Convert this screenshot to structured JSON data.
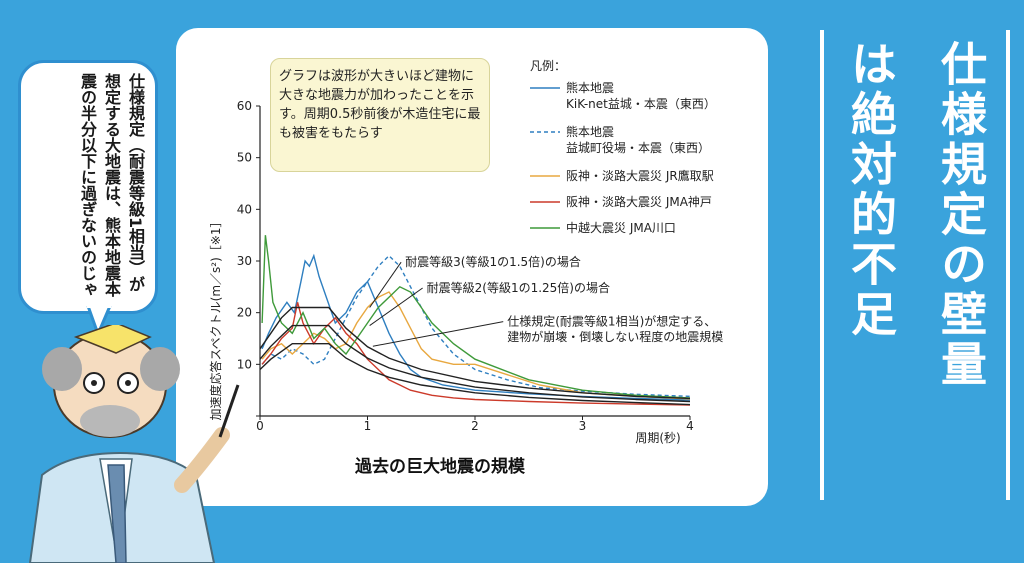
{
  "title": "仕様規定の壁量は絶対的不足",
  "title_col1": "仕様規定の壁量",
  "title_col2": "は絶対的不足",
  "speech": "仕様規定（耐震等級1相当）が想定する大地震は、熊本地震本震の半分以下に過ぎないのじゃ",
  "note": "グラフは波形が大きいほど建物に大きな地震力が加わったことを示す。周期0.5秒前後が木造住宅に最も被害をもたらす",
  "chart_data": {
    "type": "line",
    "title": "過去の巨大地震の規模",
    "xlabel": "周期(秒)",
    "ylabel": "加速度応答スペクトル(m／s²)［※1］",
    "xlim": [
      0,
      4
    ],
    "ylim": [
      0,
      60
    ],
    "xticks": [
      "0",
      "1",
      "2",
      "3",
      "4"
    ],
    "yticks": [
      "0",
      "10",
      "20",
      "30",
      "40",
      "50",
      "60"
    ],
    "legend_title": "凡例：",
    "legend_position": "top-right",
    "colors": {
      "blue": "#2f7fc0",
      "orange": "#e8a840",
      "red": "#cc3a2a",
      "green": "#3f9a3a",
      "black": "#222222"
    },
    "series": [
      {
        "name": "熊本地震\nKiK-net益城・本震（東西）",
        "line1": "熊本地震",
        "line2": "KiK-net益城・本震（東西）",
        "color": "#2f7fc0",
        "dash": false,
        "x": [
          0.02,
          0.08,
          0.15,
          0.25,
          0.32,
          0.38,
          0.42,
          0.46,
          0.5,
          0.55,
          0.6,
          0.7,
          0.8,
          0.9,
          1.0,
          1.1,
          1.2,
          1.3,
          1.4,
          1.5,
          1.7,
          2.0,
          2.5,
          3.0,
          3.5,
          4.0
        ],
        "y": [
          13,
          16,
          19,
          22,
          20,
          26,
          30,
          29,
          31,
          27,
          24,
          18,
          20,
          24,
          26,
          21,
          16,
          12,
          9,
          7.5,
          6,
          5,
          4.3,
          3.8,
          3.4,
          3.1
        ]
      },
      {
        "name": "熊本地震\n益城町役場・本震（東西）",
        "line1": "熊本地震",
        "line2": "益城町役場・本震（東西）",
        "color": "#2f7fc0",
        "dash": true,
        "x": [
          0.02,
          0.1,
          0.2,
          0.3,
          0.4,
          0.5,
          0.6,
          0.7,
          0.8,
          0.9,
          1.0,
          1.1,
          1.2,
          1.3,
          1.4,
          1.5,
          1.6,
          1.8,
          2.0,
          2.3,
          2.6,
          3.0,
          3.5,
          4.0
        ],
        "y": [
          10,
          12,
          11,
          13,
          12,
          10,
          11,
          15,
          19,
          23,
          26,
          29,
          31,
          29,
          25,
          21,
          17,
          12,
          9,
          7,
          5.5,
          4.8,
          4.2,
          3.8
        ]
      },
      {
        "name": "阪神・淡路大震災 JR鷹取駅",
        "line1": "阪神・淡路大震災 JR鷹取駅",
        "line2": "",
        "color": "#e8a840",
        "dash": false,
        "x": [
          0.02,
          0.1,
          0.2,
          0.3,
          0.4,
          0.5,
          0.6,
          0.7,
          0.8,
          0.9,
          1.0,
          1.1,
          1.2,
          1.3,
          1.4,
          1.5,
          1.6,
          1.8,
          2.0,
          2.3,
          2.6,
          3.0,
          3.5,
          4.0
        ],
        "y": [
          11,
          13,
          14,
          12,
          14,
          16,
          15,
          13,
          14,
          18,
          21,
          23,
          24,
          21,
          17,
          13,
          11,
          10,
          10,
          8,
          6,
          4.5,
          3.8,
          3.3
        ]
      },
      {
        "name": "阪神・淡路大震災 JMA神戸",
        "line1": "阪神・淡路大震災 JMA神戸",
        "line2": "",
        "color": "#cc3a2a",
        "dash": false,
        "x": [
          0.02,
          0.1,
          0.2,
          0.3,
          0.35,
          0.4,
          0.5,
          0.6,
          0.7,
          0.8,
          0.9,
          1.0,
          1.1,
          1.2,
          1.3,
          1.4,
          1.6,
          1.8,
          2.0,
          2.5,
          3.0,
          3.5,
          4.0
        ],
        "y": [
          10,
          12,
          15,
          17,
          22,
          18,
          14,
          17,
          19,
          16,
          14,
          11,
          9,
          7,
          6,
          5,
          4,
          3.5,
          3.2,
          2.8,
          2.5,
          2.3,
          2.1
        ]
      },
      {
        "name": "中越大震災 JMA川口",
        "line1": "中越大震災 JMA川口",
        "line2": "",
        "color": "#3f9a3a",
        "dash": false,
        "x": [
          0.02,
          0.05,
          0.08,
          0.12,
          0.2,
          0.3,
          0.4,
          0.5,
          0.6,
          0.7,
          0.8,
          0.9,
          1.0,
          1.1,
          1.2,
          1.3,
          1.4,
          1.5,
          1.6,
          1.8,
          2.0,
          2.5,
          3.0,
          3.5,
          4.0
        ],
        "y": [
          18,
          35,
          30,
          22,
          18,
          16,
          20,
          15,
          17,
          14,
          12,
          15,
          18,
          21,
          23,
          25,
          24,
          21,
          18,
          14,
          11,
          7,
          5,
          4,
          3.5
        ]
      },
      {
        "name": "耐震等級3(等級1の1.5倍)の場合",
        "line1": "",
        "line2": "",
        "color": "#222222",
        "dash": false,
        "unlabeled_legend": true,
        "x": [
          0.0,
          0.1,
          0.2,
          0.3,
          0.4,
          0.5,
          0.6,
          0.64,
          0.8,
          1.0,
          1.2,
          1.5,
          2.0,
          2.5,
          3.0,
          3.5,
          4.0
        ],
        "y": [
          13,
          16,
          19,
          21,
          21,
          21,
          21,
          21,
          17,
          13.4,
          11.2,
          9,
          6.7,
          5.4,
          4.5,
          3.8,
          3.4
        ]
      },
      {
        "name": "耐震等級2(等級1の1.25倍)の場合",
        "line1": "",
        "line2": "",
        "color": "#222222",
        "dash": false,
        "unlabeled_legend": true,
        "x": [
          0.0,
          0.1,
          0.2,
          0.3,
          0.4,
          0.5,
          0.6,
          0.64,
          0.8,
          1.0,
          1.2,
          1.5,
          2.0,
          2.5,
          3.0,
          3.5,
          4.0
        ],
        "y": [
          11,
          13.5,
          15.5,
          17.5,
          17.5,
          17.5,
          17.5,
          17.5,
          14,
          11.2,
          9.3,
          7.5,
          5.6,
          4.5,
          3.7,
          3.2,
          2.8
        ]
      },
      {
        "name": "仕様規定(耐震等級1相当)が想定する、建物が崩壊・倒壊しない程度の地震規模",
        "line1": "",
        "line2": "",
        "color": "#222222",
        "dash": false,
        "unlabeled_legend": true,
        "x": [
          0.0,
          0.1,
          0.2,
          0.3,
          0.4,
          0.5,
          0.6,
          0.64,
          0.8,
          1.0,
          1.2,
          1.5,
          2.0,
          2.5,
          3.0,
          3.5,
          4.0
        ],
        "y": [
          9,
          11,
          12.5,
          14,
          14,
          14,
          14,
          14,
          11.2,
          9,
          7.5,
          6,
          4.5,
          3.6,
          3,
          2.6,
          2.2
        ]
      }
    ],
    "annotations": [
      {
        "text": "耐震等級3(等級1の1.5倍)の場合",
        "x": 1.35,
        "y": 29
      },
      {
        "text": "耐震等級2(等級1の1.25倍)の場合",
        "x": 1.55,
        "y": 24
      },
      {
        "text": "仕様規定(耐震等級1相当)が想定する、",
        "x": 2.3,
        "y": 17.5
      },
      {
        "text": "建物が崩壊・倒壊しない程度の地震規模",
        "x": 2.3,
        "y": 14.5
      }
    ]
  }
}
